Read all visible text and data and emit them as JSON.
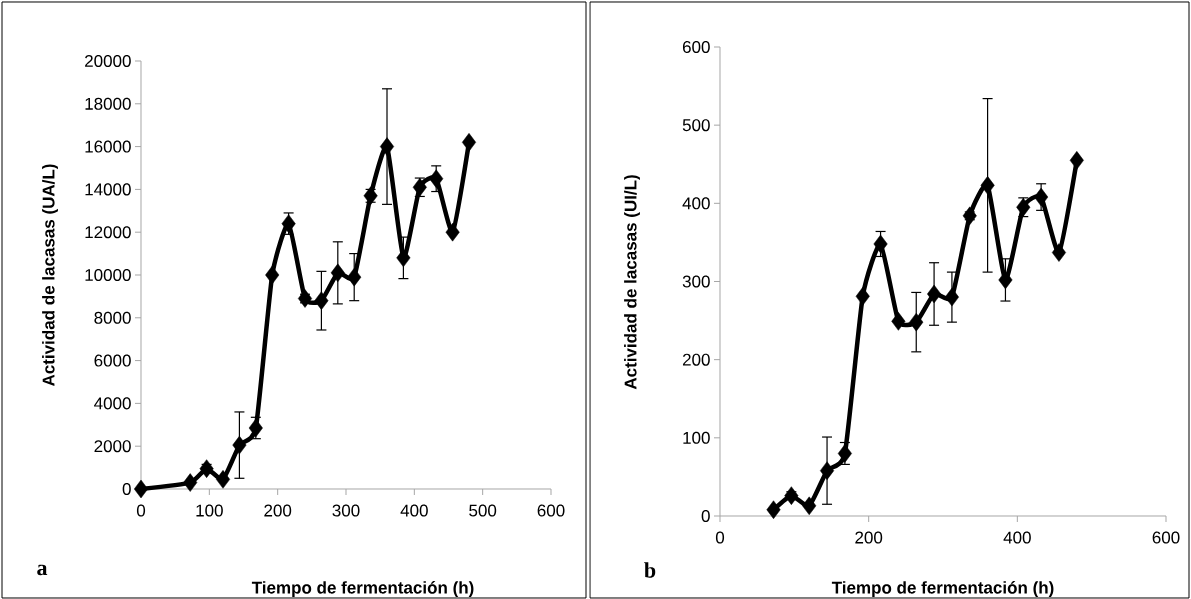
{
  "chart_data": [
    {
      "type": "line",
      "xlabel": "Tiempo de fermentación (h)",
      "ylabel": "Actividad de lacasas (UA/L)",
      "annotations": [
        "a"
      ],
      "marker": "diamond",
      "color": "#000000",
      "x": [
        0,
        72,
        96,
        120,
        144,
        168,
        192,
        216,
        240,
        264,
        288,
        312,
        336,
        360,
        384,
        408,
        432,
        456,
        480
      ],
      "values": [
        0,
        300,
        950,
        450,
        2050,
        2850,
        10000,
        12400,
        8900,
        8800,
        10100,
        9900,
        13700,
        16000,
        10800,
        14100,
        14500,
        12000,
        16200
      ],
      "errors": [
        null,
        null,
        200,
        null,
        1550,
        500,
        null,
        500,
        200,
        1370,
        1450,
        1100,
        300,
        2700,
        970,
        430,
        600,
        null,
        null
      ],
      "xlim": [
        0,
        600
      ],
      "ylim": [
        0,
        20000
      ],
      "xticks": [
        0,
        100,
        200,
        300,
        400,
        500,
        600
      ],
      "yticks": [
        0,
        2000,
        4000,
        6000,
        8000,
        10000,
        12000,
        14000,
        16000,
        18000,
        20000
      ]
    },
    {
      "type": "line",
      "xlabel": "Tiempo de fermentación (h)",
      "ylabel": "Actividad de lacasas (UI/L)",
      "annotations": [
        "b"
      ],
      "marker": "diamond",
      "color": "#000000",
      "x": [
        72,
        96,
        120,
        144,
        168,
        192,
        216,
        240,
        264,
        288,
        312,
        336,
        360,
        384,
        408,
        432,
        456,
        480
      ],
      "values": [
        8,
        26,
        13,
        58,
        80,
        281,
        348,
        249,
        248,
        284,
        280,
        384,
        423,
        302,
        395,
        408,
        337,
        455
      ],
      "errors": [
        null,
        5,
        null,
        43,
        14,
        null,
        16,
        null,
        38,
        40,
        32,
        5,
        111,
        27,
        12,
        17,
        null,
        null
      ],
      "xlim": [
        0,
        600
      ],
      "ylim": [
        0,
        600
      ],
      "xticks": [
        0,
        200,
        400,
        600
      ],
      "yticks": [
        0,
        100,
        200,
        300,
        400,
        500,
        600
      ]
    }
  ]
}
